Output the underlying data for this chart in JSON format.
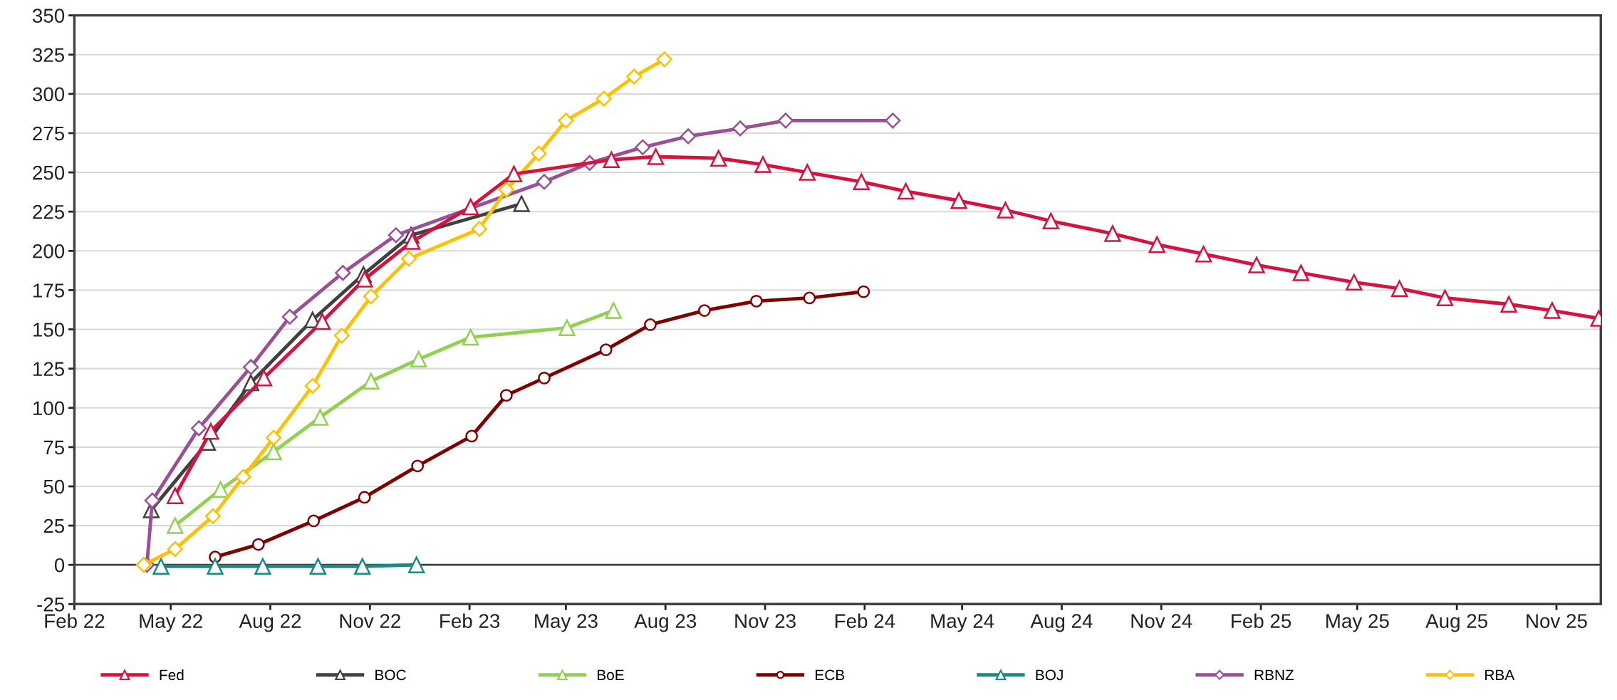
{
  "chart_data": {
    "type": "line",
    "xlim": [
      "2022-02-01",
      "2025-12-12"
    ],
    "xticks": [
      {
        "value": "2022-02-01",
        "label": "Feb 22"
      },
      {
        "value": "2022-05-01",
        "label": "May 22"
      },
      {
        "value": "2022-08-01",
        "label": "Aug 22"
      },
      {
        "value": "2022-11-01",
        "label": "Nov 22"
      },
      {
        "value": "2023-02-01",
        "label": "Feb 23"
      },
      {
        "value": "2023-05-01",
        "label": "May 23"
      },
      {
        "value": "2023-08-01",
        "label": "Aug 23"
      },
      {
        "value": "2023-11-01",
        "label": "Nov 23"
      },
      {
        "value": "2024-02-01",
        "label": "Feb 24"
      },
      {
        "value": "2024-05-01",
        "label": "May 24"
      },
      {
        "value": "2024-08-01",
        "label": "Aug 24"
      },
      {
        "value": "2024-11-01",
        "label": "Nov 24"
      },
      {
        "value": "2025-02-01",
        "label": "Feb 25"
      },
      {
        "value": "2025-05-01",
        "label": "May 25"
      },
      {
        "value": "2025-08-01",
        "label": "Aug 25"
      },
      {
        "value": "2025-11-01",
        "label": "Nov 25"
      }
    ],
    "ylim": [
      -25,
      350
    ],
    "yticks": [
      -25,
      0,
      25,
      50,
      75,
      100,
      125,
      150,
      175,
      200,
      225,
      250,
      275,
      300,
      325,
      350
    ],
    "grid": "y",
    "legend": "bottom",
    "line_style": "solid",
    "ref_lines": [
      {
        "axis": "y",
        "value": 0,
        "color": "#404040"
      }
    ],
    "series": [
      {
        "name": "Fed",
        "color": "#d6123f",
        "marker": "triangle",
        "x": [
          "2022-05-05",
          "2022-06-07",
          "2022-07-26",
          "2022-09-18",
          "2022-10-27",
          "2022-12-10",
          "2023-02-02",
          "2023-03-14",
          "2023-06-12",
          "2023-07-23",
          "2023-09-19",
          "2023-10-30",
          "2023-12-10",
          "2024-01-29",
          "2024-03-10",
          "2024-04-28",
          "2024-06-10",
          "2024-07-22",
          "2024-09-17",
          "2024-10-28",
          "2024-12-10",
          "2025-01-28",
          "2025-03-10",
          "2025-04-28",
          "2025-06-09",
          "2025-07-21",
          "2025-09-18",
          "2025-10-28",
          "2025-12-10"
        ],
        "values": [
          44,
          85,
          119,
          155,
          182,
          206,
          228,
          249,
          258,
          260,
          259,
          255,
          250,
          244,
          238,
          232,
          226,
          219,
          211,
          204,
          198,
          191,
          186,
          180,
          176,
          170,
          166,
          162,
          157
        ]
      },
      {
        "name": "BOC",
        "color": "#404040",
        "marker": "triangle",
        "x": [
          "2022-04-13",
          "2022-06-04",
          "2022-07-14",
          "2022-09-09",
          "2022-10-26",
          "2022-12-09",
          "2023-03-21"
        ],
        "values": [
          35,
          78,
          116,
          156,
          185,
          210,
          230
        ]
      },
      {
        "name": "BoE",
        "color": "#92d050",
        "marker": "triangle",
        "x": [
          "2022-05-05",
          "2022-06-16",
          "2022-08-04",
          "2022-09-16",
          "2022-11-02",
          "2022-12-16",
          "2023-02-02",
          "2023-05-02",
          "2023-06-14"
        ],
        "values": [
          25,
          48,
          72,
          94,
          117,
          131,
          145,
          151,
          162
        ]
      },
      {
        "name": "ECB",
        "color": "#800000",
        "marker": "circle",
        "x": [
          "2022-06-11",
          "2022-07-21",
          "2022-09-10",
          "2022-10-27",
          "2022-12-15",
          "2023-02-03",
          "2023-03-07",
          "2023-04-11",
          "2023-06-07",
          "2023-07-18",
          "2023-09-06",
          "2023-10-24",
          "2023-12-12",
          "2024-01-31"
        ],
        "values": [
          5,
          13,
          28,
          43,
          63,
          82,
          108,
          119,
          137,
          153,
          162,
          168,
          170,
          174
        ]
      },
      {
        "name": "BOJ",
        "color": "#1a8a84",
        "marker": "triangle",
        "x": [
          "2022-04-22",
          "2022-06-11",
          "2022-07-25",
          "2022-09-14",
          "2022-10-25",
          "2022-12-14"
        ],
        "values": [
          -1,
          -1,
          -1,
          -1,
          -1,
          0
        ]
      },
      {
        "name": "RBNZ",
        "color": "#9b4f96",
        "marker": "diamond",
        "x": [
          "2022-04-09",
          "2022-04-14",
          "2022-05-27",
          "2022-07-14",
          "2022-08-19",
          "2022-10-07",
          "2022-11-25",
          "2023-04-11",
          "2023-05-23",
          "2023-07-11",
          "2023-08-22",
          "2023-10-09",
          "2023-11-20",
          "2024-02-27"
        ],
        "values": [
          0,
          41,
          87,
          126,
          158,
          186,
          210,
          244,
          256,
          266,
          273,
          278,
          283,
          283
        ]
      },
      {
        "name": "RBA",
        "color": "#ffc000",
        "marker": "diamond",
        "x": [
          "2022-04-06",
          "2022-05-05",
          "2022-06-09",
          "2022-07-07",
          "2022-08-04",
          "2022-09-09",
          "2022-10-06",
          "2022-11-02",
          "2022-12-07",
          "2023-02-10",
          "2023-03-07",
          "2023-04-06",
          "2023-05-01",
          "2023-06-05",
          "2023-07-03",
          "2023-07-31"
        ],
        "values": [
          0,
          10,
          31,
          56,
          81,
          114,
          146,
          171,
          195,
          214,
          239,
          262,
          283,
          297,
          311,
          322
        ]
      }
    ]
  }
}
